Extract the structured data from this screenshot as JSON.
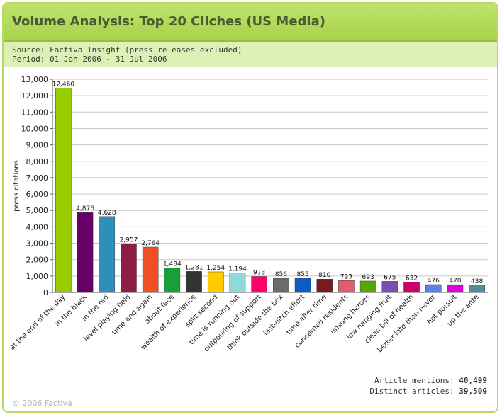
{
  "header": {
    "title": "Volume Analysis: Top 20 Cliches (US Media)",
    "source": "Source: Factiva Insight (press releases excluded)",
    "period": "Period: 01 Jan 2006 - 31 Jul 2006"
  },
  "stats": {
    "mentions_label": "Article mentions:",
    "mentions_value": "40,499",
    "distinct_label": "Distinct articles:",
    "distinct_value": "39,509"
  },
  "footer": {
    "copyright": "© 2006 Factiva"
  },
  "chart_data": {
    "type": "bar",
    "ylabel": "press citations",
    "ylim": [
      0,
      13000
    ],
    "yticks": [
      0,
      1000,
      2000,
      3000,
      4000,
      5000,
      6000,
      7000,
      8000,
      9000,
      10000,
      11000,
      12000,
      13000
    ],
    "grid": true,
    "categories": [
      "at the end of the day",
      "in the black",
      "in the red",
      "level playing field",
      "time and again",
      "about face",
      "wealth of experience",
      "split second",
      "time is running out",
      "outpouring of support",
      "think outside the box",
      "last-ditch effort",
      "time after time",
      "concerned residents",
      "unsung heroes",
      "low hanging fruit",
      "clean bill of health",
      "better late than never",
      "hot pursuit",
      "up the ante"
    ],
    "values": [
      12460,
      4876,
      4628,
      2957,
      2764,
      1484,
      1281,
      1254,
      1194,
      973,
      856,
      855,
      810,
      723,
      693,
      675,
      632,
      476,
      470,
      438
    ],
    "value_labels": [
      "12,460",
      "4,876",
      "4,628",
      "2,957",
      "2,764",
      "1,484",
      "1,281",
      "1,254",
      "1,194",
      "973",
      "856",
      "855",
      "810",
      "723",
      "693",
      "675",
      "632",
      "476",
      "470",
      "438"
    ],
    "colors": [
      "#99cc00",
      "#660066",
      "#2f8fb8",
      "#8c1d45",
      "#f04e23",
      "#1a9e3a",
      "#333333",
      "#ffcc00",
      "#8fd9d9",
      "#ff0066",
      "#6b6b6b",
      "#0b5cc7",
      "#7a1b1b",
      "#e05c6e",
      "#55a800",
      "#7a4fb3",
      "#cc0066",
      "#5c7ff0",
      "#e000e0",
      "#4f8f99"
    ]
  }
}
